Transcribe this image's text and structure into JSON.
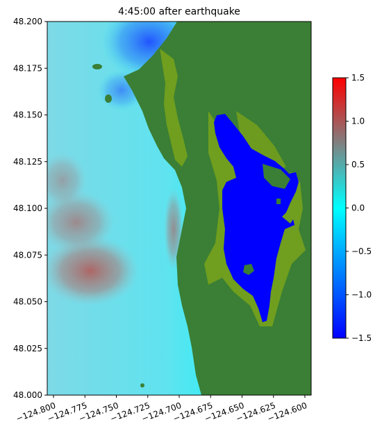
{
  "title": "4:45:00 after earthquake",
  "map": {
    "x_range": [
      -124.805,
      -124.595
    ],
    "y_range": [
      48.0,
      48.2
    ],
    "x_ticks": [
      {
        "value": -124.8,
        "label": "−124.800"
      },
      {
        "value": -124.775,
        "label": "−124.775"
      },
      {
        "value": -124.75,
        "label": "−124.750"
      },
      {
        "value": -124.725,
        "label": "−124.725"
      },
      {
        "value": -124.7,
        "label": "−124.700"
      },
      {
        "value": -124.675,
        "label": "−124.675"
      },
      {
        "value": -124.65,
        "label": "−124.650"
      },
      {
        "value": -124.625,
        "label": "−124.625"
      },
      {
        "value": -124.6,
        "label": "−124.600"
      }
    ],
    "y_ticks": [
      {
        "value": 48.0,
        "label": "48.000"
      },
      {
        "value": 48.025,
        "label": "48.025"
      },
      {
        "value": 48.05,
        "label": "48.050"
      },
      {
        "value": 48.075,
        "label": "48.075"
      },
      {
        "value": 48.1,
        "label": "48.100"
      },
      {
        "value": 48.125,
        "label": "48.125"
      },
      {
        "value": 48.15,
        "label": "48.150"
      },
      {
        "value": 48.175,
        "label": "48.175"
      },
      {
        "value": 48.2,
        "label": "48.200"
      }
    ],
    "colors": {
      "land": "#3a7f35",
      "wetland": "#7aa31a",
      "lake": "#0000ff",
      "ocean_base": "#3fe6ee",
      "ocean_deep": "#8ddfe8",
      "positive_anomaly": "#b96d6a",
      "negative_anomaly": "#1e5bff"
    }
  },
  "colorbar": {
    "range": [
      -1.5,
      1.5
    ],
    "ticks": [
      {
        "value": 1.5,
        "label": "1.5"
      },
      {
        "value": 1.0,
        "label": "1.0"
      },
      {
        "value": 0.5,
        "label": "0.5"
      },
      {
        "value": 0.0,
        "label": "0.0"
      },
      {
        "value": -0.5,
        "label": "−0.5"
      },
      {
        "value": -1.0,
        "label": "−1.0"
      },
      {
        "value": -1.5,
        "label": "−1.5"
      }
    ],
    "colors": [
      "#0000ff",
      "#00ffff",
      "#808080",
      "#ff0000"
    ]
  }
}
